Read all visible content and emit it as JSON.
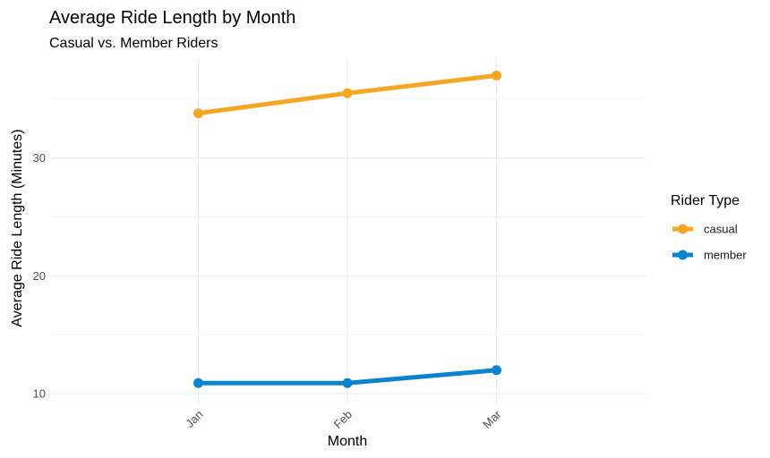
{
  "chart_data": {
    "type": "line",
    "title": "Average Ride Length by Month",
    "subtitle": "Casual vs. Member Riders",
    "xlabel": "Month",
    "ylabel": "Average Ride Length (Minutes)",
    "categories": [
      "Jan",
      "Feb",
      "Mar"
    ],
    "y_ticks": [
      10,
      20,
      30
    ],
    "ylim": [
      9.1,
      38.4
    ],
    "grid": true,
    "legend": {
      "title": "Rider Type",
      "position": "right"
    },
    "series": [
      {
        "name": "casual",
        "color": "#F5A623",
        "values": [
          33.8,
          35.5,
          37.0
        ]
      },
      {
        "name": "member",
        "color": "#0A84CF",
        "values": [
          10.9,
          10.9,
          12.0
        ]
      }
    ]
  }
}
